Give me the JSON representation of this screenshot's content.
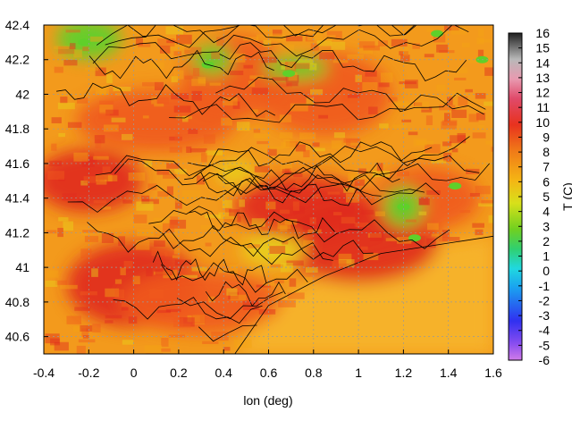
{
  "chart_data": {
    "type": "heatmap",
    "title": "",
    "xlabel": "lon (deg)",
    "ylabel": "",
    "colorbar_label": "T (C)",
    "xlim": [
      -0.4,
      1.6
    ],
    "ylim": [
      40.5,
      42.4
    ],
    "x_ticks": [
      "-0.4",
      "-0.2",
      "0",
      "0.2",
      "0.4",
      "0.6",
      "0.8",
      "1",
      "1.2",
      "1.4",
      "1.6"
    ],
    "y_ticks": [
      "40.6",
      "40.8",
      "41",
      "41.2",
      "41.4",
      "41.6",
      "41.8",
      "42",
      "42.2",
      "42.4"
    ],
    "colorbar_range": [
      -6,
      16
    ],
    "colorbar_ticks": [
      "16",
      "15",
      "14",
      "13",
      "12",
      "11",
      "10",
      "9",
      "8",
      "7",
      "6",
      "5",
      "4",
      "3",
      "2",
      "1",
      "0",
      "-1",
      "-2",
      "-3",
      "-4",
      "-5",
      "-6"
    ],
    "grid": true,
    "colors": {
      "sea": "#f6b22a",
      "low": "#f5a514",
      "mid": "#ef5a1c",
      "high": "#e02a1e",
      "cool": "#e8d21a",
      "green": "#5fd02a",
      "contour": "#000000"
    },
    "warm_regions": [
      {
        "lon": -0.2,
        "lat": 41.5,
        "T": 10
      },
      {
        "lon": 0.0,
        "lat": 40.9,
        "T": 10
      },
      {
        "lon": 0.1,
        "lat": 41.85,
        "T": 9
      },
      {
        "lon": 0.45,
        "lat": 42.1,
        "T": 9
      },
      {
        "lon": 0.75,
        "lat": 41.35,
        "T": 10
      },
      {
        "lon": 1.0,
        "lat": 41.15,
        "T": 10
      },
      {
        "lon": 1.3,
        "lat": 41.4,
        "T": 9
      },
      {
        "lon": 0.85,
        "lat": 42.0,
        "T": 9
      },
      {
        "lon": 0.3,
        "lat": 40.8,
        "T": 9
      }
    ],
    "cool_regions": [
      {
        "lon": 0.45,
        "lat": 41.55,
        "T": 6
      },
      {
        "lon": 0.62,
        "lat": 41.1,
        "T": 5
      },
      {
        "lon": 1.2,
        "lat": 41.35,
        "T": 3
      },
      {
        "lon": 0.72,
        "lat": 42.15,
        "T": 4
      },
      {
        "lon": 0.35,
        "lat": 42.2,
        "T": 3
      },
      {
        "lon": -0.2,
        "lat": 42.32,
        "T": 3
      }
    ]
  }
}
